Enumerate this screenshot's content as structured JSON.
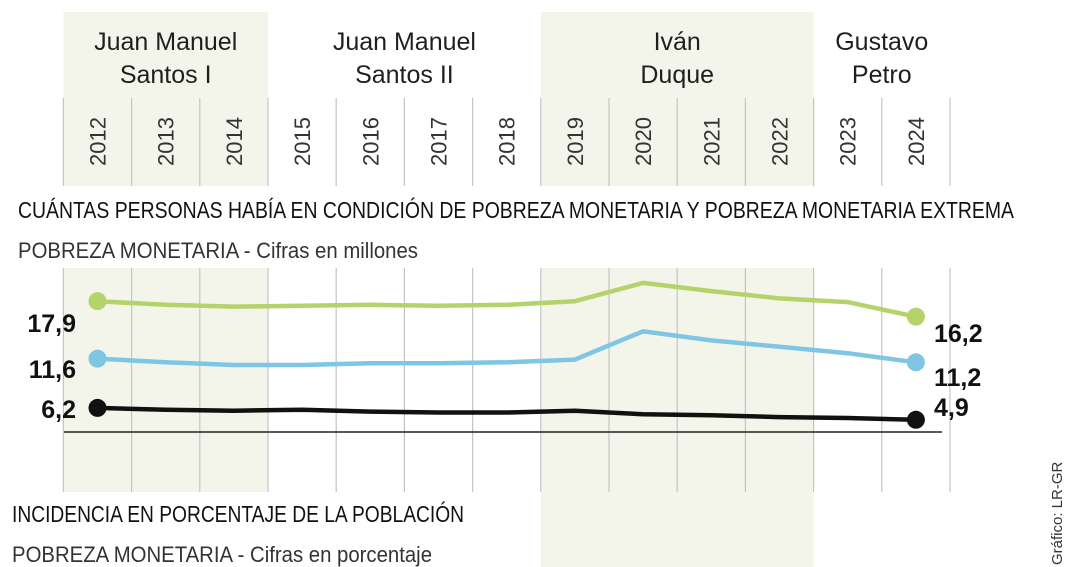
{
  "periods": [
    {
      "name": [
        "Juan Manuel",
        "Santos I"
      ],
      "from": "2012",
      "to": "2014",
      "shaded": true
    },
    {
      "name": [
        "Juan Manuel",
        "Santos II"
      ],
      "from": "2015",
      "to": "2018",
      "shaded": false
    },
    {
      "name": [
        "Iván",
        "Duque"
      ],
      "from": "2019",
      "to": "2022",
      "shaded": true
    },
    {
      "name": [
        "Gustavo",
        "Petro"
      ],
      "from": "2023",
      "to": "2024",
      "shaded": false
    }
  ],
  "credit": "Gráfico: LR-GR",
  "chart_data": [
    {
      "type": "line",
      "title": "CUÁNTAS PERSONAS HABÍA EN CONDICIÓN DE POBREZA MONETARIA Y POBREZA MONETARIA EXTREMA",
      "subtitle": "POBREZA MONETARIA - Cifras en millones",
      "x": [
        "2012",
        "2013",
        "2014",
        "2015",
        "2016",
        "2017",
        "2018",
        "2019",
        "2020",
        "2021",
        "2022",
        "2023",
        "2024"
      ],
      "ylim": [
        4,
        20
      ],
      "grid": true,
      "series": [
        {
          "color": "#b5d36b",
          "values": [
            17.9,
            17.5,
            17.3,
            17.4,
            17.5,
            17.4,
            17.5,
            17.9,
            19.9,
            19.0,
            18.2,
            17.8,
            16.2
          ],
          "start_label": "17,9",
          "end_label": "16,2"
        },
        {
          "color": "#7ec6e3",
          "values": [
            11.6,
            11.2,
            10.9,
            10.9,
            11.1,
            11.1,
            11.2,
            11.5,
            14.6,
            13.6,
            12.9,
            12.2,
            11.2
          ],
          "start_label": "11,6",
          "end_label": "11,2"
        },
        {
          "color": "#111111",
          "values": [
            6.2,
            6.0,
            5.9,
            6.0,
            5.8,
            5.7,
            5.7,
            5.9,
            5.5,
            5.4,
            5.2,
            5.1,
            4.9
          ],
          "start_label": "6,2",
          "end_label": "4,9"
        }
      ]
    },
    {
      "type": "line",
      "title": "INCIDENCIA EN PORCENTAJE DE LA POBLACIÓN",
      "subtitle": "POBREZA MONETARIA - Cifras en porcentaje",
      "x": [
        "2012",
        "2013",
        "2014",
        "2015",
        "2016",
        "2017",
        "2018",
        "2019",
        "2020",
        "2021",
        "2022",
        "2023",
        "2024"
      ],
      "series": []
    }
  ]
}
